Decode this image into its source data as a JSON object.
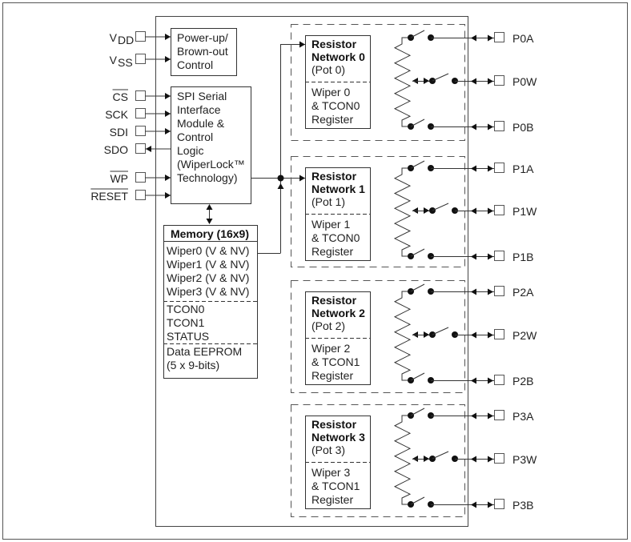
{
  "left_pins": [
    {
      "label": "V",
      "sub": "DD",
      "dir": "in"
    },
    {
      "label": "V",
      "sub": "SS",
      "dir": "in"
    },
    {
      "label": "CS",
      "overline": true,
      "dir": "in"
    },
    {
      "label": "SCK",
      "dir": "in"
    },
    {
      "label": "SDI",
      "dir": "in"
    },
    {
      "label": "SDO",
      "dir": "out"
    },
    {
      "label": "WP",
      "overline": true,
      "dir": "in"
    },
    {
      "label": "RESET",
      "overline": true,
      "dir": "in"
    }
  ],
  "power_block": [
    "Power-up/",
    "Brown-out",
    "Control"
  ],
  "spi_block": [
    "SPI Serial",
    "Interface",
    "Module &",
    "Control",
    "Logic",
    "(WiperLock™",
    "Technology)"
  ],
  "memory": {
    "title": "Memory (16x9)",
    "wipers": [
      "Wiper0 (V & NV)",
      "Wiper1 (V & NV)",
      "Wiper2 (V & NV)",
      "Wiper3 (V & NV)"
    ],
    "registers": [
      "TCON0",
      "TCON1",
      "STATUS"
    ],
    "eeprom": [
      "Data EEPROM",
      "(5 x 9-bits)"
    ]
  },
  "networks": [
    {
      "title1": "Resistor",
      "title2": "Network 0",
      "pot": "(Pot 0)",
      "reg": [
        "Wiper 0",
        "& TCON0",
        "Register"
      ],
      "pins": [
        "P0A",
        "P0W",
        "P0B"
      ]
    },
    {
      "title1": "Resistor",
      "title2": "Network 1",
      "pot": "(Pot 1)",
      "reg": [
        "Wiper 1",
        "& TCON0",
        "Register"
      ],
      "pins": [
        "P1A",
        "P1W",
        "P1B"
      ]
    },
    {
      "title1": "Resistor",
      "title2": "Network 2",
      "pot": "(Pot 2)",
      "reg": [
        "Wiper 2",
        "& TCON1",
        "Register"
      ],
      "pins": [
        "P2A",
        "P2W",
        "P2B"
      ]
    },
    {
      "title1": "Resistor",
      "title2": "Network 3",
      "pot": "(Pot 3)",
      "reg": [
        "Wiper 3",
        "& TCON1",
        "Register"
      ],
      "pins": [
        "P3A",
        "P3W",
        "P3B"
      ]
    }
  ]
}
